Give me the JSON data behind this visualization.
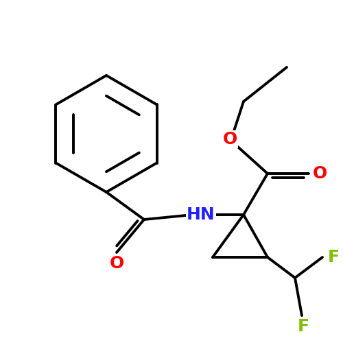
{
  "bg_color": "#ffffff",
  "bond_color": "#000000",
  "bond_width": 2.8,
  "atom_colors": {
    "O": "#ff0000",
    "N": "#2222ff",
    "F": "#7FBF00"
  },
  "font_size_atoms": 18,
  "figsize": [
    5.0,
    5.0
  ],
  "dpi": 100
}
